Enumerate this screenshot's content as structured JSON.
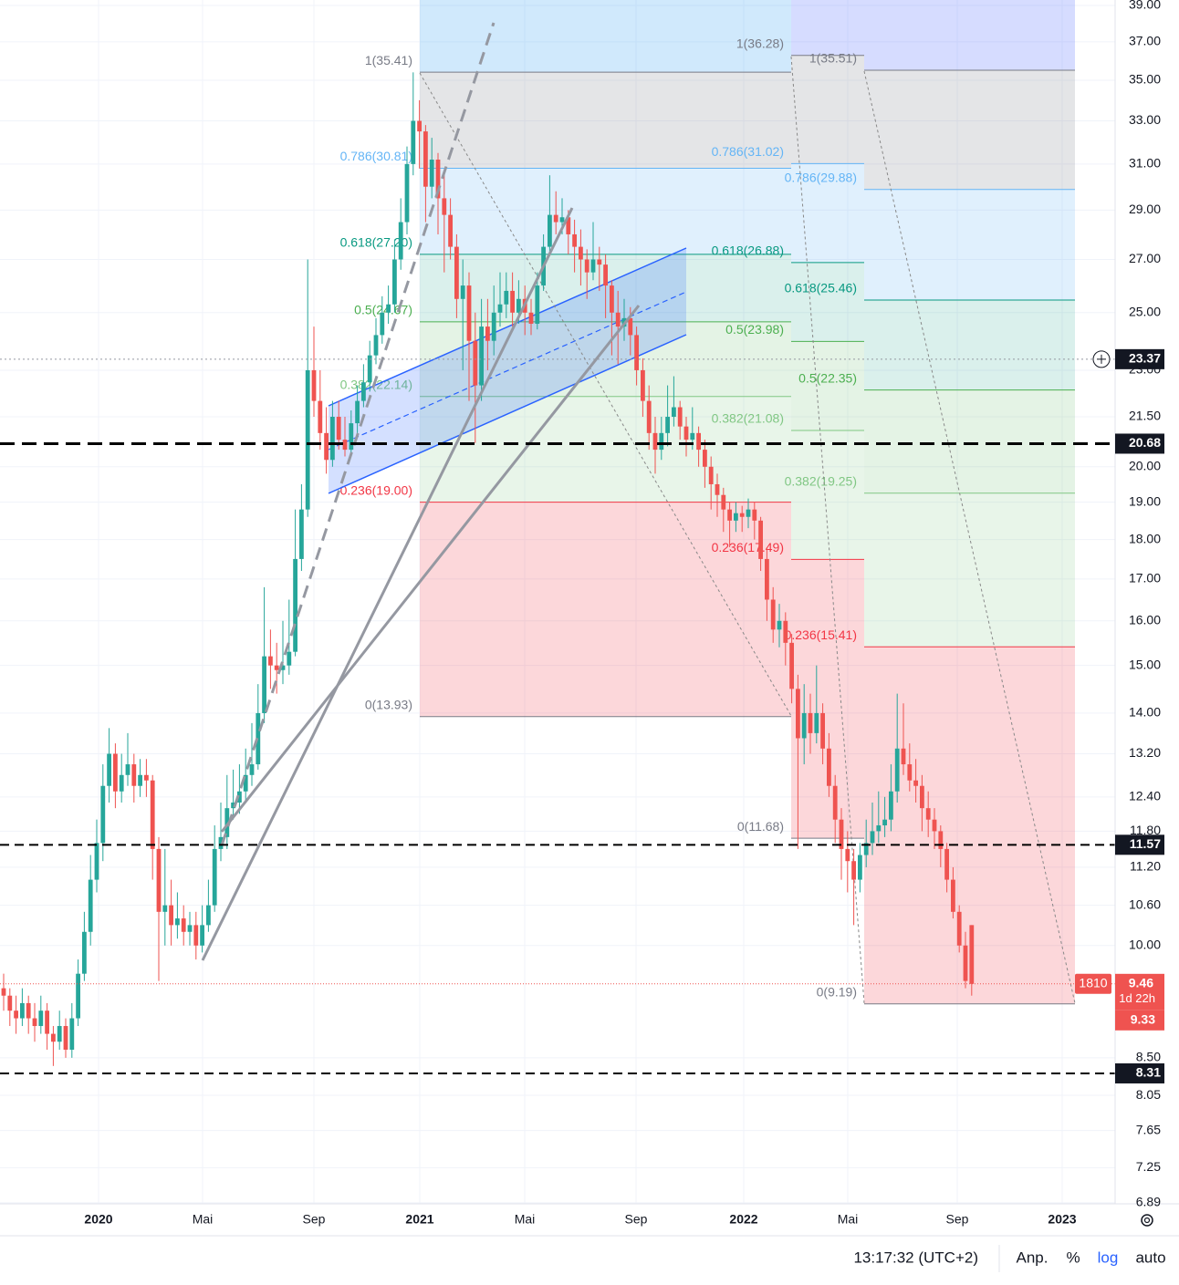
{
  "chart_data": {
    "type": "candlestick",
    "log_scale": true,
    "grid": true,
    "up_color": "#26a69a",
    "down_color": "#ef5350",
    "ylim": [
      6.88,
      39.31
    ],
    "yticks": [
      {
        "value": 39,
        "label": "39.00"
      },
      {
        "value": 37,
        "label": "37.00"
      },
      {
        "value": 35,
        "label": "35.00"
      },
      {
        "value": 33,
        "label": "33.00"
      },
      {
        "value": 31,
        "label": "31.00"
      },
      {
        "value": 29,
        "label": "29.00"
      },
      {
        "value": 27,
        "label": "27.00"
      },
      {
        "value": 25,
        "label": "25.00"
      },
      {
        "value": 23,
        "label": "23.00"
      },
      {
        "value": 21.5,
        "label": "21.50"
      },
      {
        "value": 20,
        "label": "20.00"
      },
      {
        "value": 19,
        "label": "19.00"
      },
      {
        "value": 18,
        "label": "18.00"
      },
      {
        "value": 17,
        "label": "17.00"
      },
      {
        "value": 16,
        "label": "16.00"
      },
      {
        "value": 15,
        "label": "15.00"
      },
      {
        "value": 14,
        "label": "14.00"
      },
      {
        "value": 13.2,
        "label": "13.20"
      },
      {
        "value": 12.4,
        "label": "12.40"
      },
      {
        "value": 11.8,
        "label": "11.80"
      },
      {
        "value": 11.2,
        "label": "11.20"
      },
      {
        "value": 10.6,
        "label": "10.60"
      },
      {
        "value": 10,
        "label": "10.00"
      },
      {
        "value": 8.5,
        "label": "8.50"
      },
      {
        "value": 8.05,
        "label": "8.05"
      },
      {
        "value": 7.65,
        "label": "7.65"
      },
      {
        "value": 7.25,
        "label": "7.25"
      },
      {
        "value": 6.89,
        "label": "6.89"
      }
    ],
    "x_labels": [
      "2020",
      "Mai",
      "Sep",
      "2021",
      "Mai",
      "Sep",
      "2022",
      "Mai",
      "Sep",
      "2023"
    ],
    "candles": [
      [
        9.4,
        9.6,
        9.1,
        9.3
      ],
      [
        9.3,
        9.4,
        8.9,
        9.1
      ],
      [
        9.1,
        9.3,
        8.8,
        9.0
      ],
      [
        9.0,
        9.4,
        8.9,
        9.2
      ],
      [
        9.2,
        9.3,
        8.8,
        9.0
      ],
      [
        9.0,
        9.2,
        8.7,
        8.9
      ],
      [
        8.9,
        9.3,
        8.8,
        9.1
      ],
      [
        9.1,
        9.2,
        8.6,
        8.8
      ],
      [
        8.8,
        8.9,
        8.4,
        8.7
      ],
      [
        8.7,
        9.1,
        8.6,
        8.9
      ],
      [
        8.9,
        9.0,
        8.5,
        8.6
      ],
      [
        8.6,
        9.2,
        8.5,
        9.0
      ],
      [
        9.0,
        9.8,
        8.9,
        9.6
      ],
      [
        9.6,
        10.5,
        9.5,
        10.2
      ],
      [
        10.2,
        11.4,
        10.0,
        11.0
      ],
      [
        11.0,
        12.0,
        10.8,
        11.6
      ],
      [
        11.6,
        13.0,
        11.3,
        12.6
      ],
      [
        12.6,
        13.7,
        12.3,
        13.2
      ],
      [
        13.2,
        13.4,
        12.2,
        12.5
      ],
      [
        12.5,
        13.2,
        12.3,
        12.8
      ],
      [
        12.8,
        13.6,
        12.6,
        13.0
      ],
      [
        13.0,
        13.2,
        12.3,
        12.6
      ],
      [
        12.6,
        13.1,
        12.4,
        12.8
      ],
      [
        12.8,
        13.1,
        12.4,
        12.7
      ],
      [
        12.7,
        12.8,
        11.0,
        11.5
      ],
      [
        11.5,
        11.7,
        9.5,
        10.5
      ],
      [
        10.5,
        11.5,
        10.0,
        10.6
      ],
      [
        10.6,
        11.0,
        10.0,
        10.3
      ],
      [
        10.3,
        10.8,
        10.1,
        10.4
      ],
      [
        10.4,
        10.6,
        10.0,
        10.2
      ],
      [
        10.2,
        10.5,
        10.0,
        10.3
      ],
      [
        10.3,
        10.5,
        9.8,
        10.0
      ],
      [
        10.0,
        10.6,
        9.9,
        10.3
      ],
      [
        10.3,
        11.0,
        10.2,
        10.6
      ],
      [
        10.6,
        11.9,
        10.5,
        11.5
      ],
      [
        11.5,
        12.3,
        11.3,
        11.7
      ],
      [
        11.7,
        12.8,
        11.5,
        12.2
      ],
      [
        12.2,
        12.9,
        12.0,
        12.3
      ],
      [
        12.3,
        13.0,
        12.1,
        12.5
      ],
      [
        12.5,
        13.3,
        12.3,
        12.8
      ],
      [
        12.8,
        13.8,
        12.6,
        13.0
      ],
      [
        13.0,
        14.6,
        12.9,
        14.0
      ],
      [
        14.0,
        16.8,
        13.8,
        15.2
      ],
      [
        15.2,
        15.8,
        14.5,
        15.0
      ],
      [
        15.0,
        15.5,
        14.4,
        14.9
      ],
      [
        14.9,
        16.0,
        14.6,
        15.0
      ],
      [
        15.0,
        16.5,
        14.8,
        15.3
      ],
      [
        15.3,
        18.8,
        15.2,
        17.5
      ],
      [
        17.5,
        19.5,
        17.2,
        18.8
      ],
      [
        18.8,
        27.0,
        18.6,
        23.0
      ],
      [
        23.0,
        24.5,
        21.5,
        22.0
      ],
      [
        22.0,
        23.0,
        20.5,
        21.0
      ],
      [
        21.0,
        21.8,
        19.8,
        20.2
      ],
      [
        20.2,
        22.0,
        20.0,
        21.5
      ],
      [
        21.5,
        22.0,
        20.5,
        20.8
      ],
      [
        20.8,
        21.5,
        20.3,
        20.5
      ],
      [
        20.5,
        21.7,
        20.4,
        21.3
      ],
      [
        21.3,
        22.5,
        21.0,
        22.0
      ],
      [
        22.0,
        23.2,
        21.8,
        22.6
      ],
      [
        22.6,
        24.0,
        22.3,
        23.5
      ],
      [
        23.5,
        24.8,
        23.2,
        24.2
      ],
      [
        24.2,
        25.6,
        23.9,
        25.0
      ],
      [
        25.0,
        26.0,
        24.6,
        25.3
      ],
      [
        25.3,
        27.8,
        25.0,
        27.0
      ],
      [
        27.0,
        29.5,
        26.6,
        28.5
      ],
      [
        28.5,
        31.8,
        28.0,
        31.0
      ],
      [
        31.0,
        35.4,
        30.5,
        33.0
      ],
      [
        33.0,
        34.0,
        30.8,
        32.5
      ],
      [
        32.5,
        32.8,
        28.5,
        30.0
      ],
      [
        30.0,
        32.2,
        29.5,
        31.2
      ],
      [
        31.2,
        31.5,
        28.0,
        29.5
      ],
      [
        29.5,
        30.5,
        26.5,
        28.8
      ],
      [
        28.8,
        29.5,
        27.0,
        27.5
      ],
      [
        27.5,
        28.0,
        24.8,
        25.5
      ],
      [
        25.5,
        27.0,
        23.0,
        26.0
      ],
      [
        26.0,
        26.5,
        22.0,
        24.0
      ],
      [
        24.0,
        25.0,
        20.7,
        22.5
      ],
      [
        22.5,
        25.5,
        22.0,
        24.5
      ],
      [
        24.5,
        25.5,
        23.0,
        24.0
      ],
      [
        24.0,
        26.0,
        23.5,
        25.0
      ],
      [
        25.0,
        26.5,
        24.5,
        25.3
      ],
      [
        25.3,
        26.5,
        24.8,
        25.8
      ],
      [
        25.8,
        26.5,
        24.5,
        25.0
      ],
      [
        25.0,
        26.2,
        24.6,
        25.5
      ],
      [
        25.5,
        26.0,
        24.2,
        25.0
      ],
      [
        25.0,
        25.5,
        24.2,
        24.6
      ],
      [
        24.6,
        26.5,
        24.4,
        26.0
      ],
      [
        26.0,
        28.0,
        25.8,
        27.5
      ],
      [
        27.5,
        30.5,
        27.2,
        28.8
      ],
      [
        28.8,
        29.8,
        28.0,
        28.5
      ],
      [
        28.5,
        29.5,
        28.0,
        28.7
      ],
      [
        28.7,
        29.0,
        27.2,
        28.0
      ],
      [
        28.0,
        28.6,
        26.5,
        27.5
      ],
      [
        27.5,
        28.2,
        26.0,
        27.0
      ],
      [
        27.0,
        27.4,
        25.5,
        26.5
      ],
      [
        26.5,
        28.5,
        26.2,
        27.0
      ],
      [
        27.0,
        27.5,
        25.8,
        26.8
      ],
      [
        26.8,
        27.2,
        24.8,
        26.0
      ],
      [
        26.0,
        26.2,
        23.5,
        25.0
      ],
      [
        25.0,
        25.8,
        23.2,
        24.5
      ],
      [
        24.5,
        25.5,
        24.0,
        24.8
      ],
      [
        24.8,
        25.2,
        23.5,
        24.2
      ],
      [
        24.2,
        24.5,
        22.5,
        23.0
      ],
      [
        23.0,
        23.4,
        21.5,
        22.0
      ],
      [
        22.0,
        22.5,
        20.5,
        21.0
      ],
      [
        21.0,
        21.5,
        19.8,
        20.5
      ],
      [
        20.5,
        21.5,
        20.2,
        21.0
      ],
      [
        21.0,
        22.5,
        20.6,
        21.5
      ],
      [
        21.5,
        22.8,
        21.2,
        21.8
      ],
      [
        21.8,
        22.0,
        20.8,
        21.2
      ],
      [
        21.2,
        21.5,
        20.3,
        20.8
      ],
      [
        20.8,
        21.8,
        20.5,
        21.0
      ],
      [
        21.0,
        21.2,
        20.0,
        20.5
      ],
      [
        20.5,
        20.8,
        19.4,
        20.0
      ],
      [
        20.0,
        20.3,
        18.8,
        19.5
      ],
      [
        19.5,
        19.8,
        18.6,
        19.2
      ],
      [
        19.2,
        19.4,
        18.2,
        18.8
      ],
      [
        18.8,
        19.0,
        17.8,
        18.5
      ],
      [
        18.5,
        19.0,
        18.2,
        18.7
      ],
      [
        18.7,
        18.9,
        18.2,
        18.6
      ],
      [
        18.6,
        19.1,
        18.3,
        18.8
      ],
      [
        18.8,
        19.0,
        18.0,
        18.5
      ],
      [
        18.5,
        18.6,
        17.2,
        17.5
      ],
      [
        17.5,
        17.8,
        16.0,
        16.5
      ],
      [
        16.5,
        16.8,
        15.5,
        15.8
      ],
      [
        15.8,
        16.4,
        15.4,
        16.0
      ],
      [
        16.0,
        16.2,
        15.0,
        15.5
      ],
      [
        15.5,
        15.7,
        14.2,
        14.5
      ],
      [
        14.5,
        14.8,
        11.5,
        13.5
      ],
      [
        13.5,
        14.6,
        13.0,
        14.0
      ],
      [
        14.0,
        14.4,
        13.2,
        13.6
      ],
      [
        13.6,
        15.0,
        13.4,
        14.0
      ],
      [
        14.0,
        14.2,
        13.0,
        13.3
      ],
      [
        13.3,
        13.6,
        12.4,
        12.6
      ],
      [
        12.6,
        12.8,
        11.6,
        12.0
      ],
      [
        12.0,
        12.2,
        11.0,
        11.5
      ],
      [
        11.5,
        11.8,
        10.8,
        11.3
      ],
      [
        11.3,
        11.5,
        10.3,
        11.0
      ],
      [
        11.0,
        11.6,
        10.8,
        11.4
      ],
      [
        11.4,
        12.0,
        11.2,
        11.6
      ],
      [
        11.6,
        12.3,
        11.4,
        11.8
      ],
      [
        11.8,
        12.5,
        11.6,
        11.9
      ],
      [
        11.9,
        12.4,
        11.7,
        12.0
      ],
      [
        12.0,
        13.0,
        11.8,
        12.5
      ],
      [
        12.5,
        14.4,
        12.3,
        13.3
      ],
      [
        13.3,
        14.2,
        12.8,
        13.0
      ],
      [
        13.0,
        13.4,
        12.5,
        12.7
      ],
      [
        12.7,
        13.1,
        12.3,
        12.6
      ],
      [
        12.6,
        12.8,
        11.8,
        12.2
      ],
      [
        12.2,
        12.5,
        11.7,
        12.0
      ],
      [
        12.0,
        12.2,
        11.5,
        11.8
      ],
      [
        11.8,
        11.9,
        11.2,
        11.5
      ],
      [
        11.5,
        11.6,
        10.8,
        11.0
      ],
      [
        11.0,
        11.2,
        10.4,
        10.5
      ],
      [
        10.5,
        10.6,
        9.9,
        10.0
      ],
      [
        10.0,
        10.2,
        9.4,
        9.5
      ],
      [
        10.3,
        10.3,
        9.3,
        9.46
      ]
    ],
    "fibs": [
      {
        "levels": [
          {
            "value": 35.41,
            "label": "1(35.41)"
          },
          {
            "value": 30.81,
            "label": "0.786(30.81)"
          },
          {
            "value": 27.2,
            "label": "0.618(27.20)"
          },
          {
            "value": 24.67,
            "label": "0.5(24.67)"
          },
          {
            "value": 22.14,
            "label": "0.382(22.14)"
          },
          {
            "value": 19.0,
            "label": "0.236(19.00)"
          },
          {
            "value": 13.93,
            "label": "0(13.93)"
          }
        ]
      },
      {
        "levels": [
          {
            "value": 36.28,
            "label": "1(36.28)"
          },
          {
            "value": 31.02,
            "label": "0.786(31.02)"
          },
          {
            "value": 26.88,
            "label": "0.618(26.88)"
          },
          {
            "value": 23.98,
            "label": "0.5(23.98)"
          },
          {
            "value": 21.08,
            "label": "0.382(21.08)"
          },
          {
            "value": 17.49,
            "label": "0.236(17.49)"
          },
          {
            "value": 11.68,
            "label": "0(11.68)"
          }
        ]
      },
      {
        "levels": [
          {
            "value": 35.51,
            "label": "1(35.51)"
          },
          {
            "value": 29.88,
            "label": "0.786(29.88)"
          },
          {
            "value": 25.46,
            "label": "0.618(25.46)"
          },
          {
            "value": 22.35,
            "label": "0.5(22.35)"
          },
          {
            "value": 19.25,
            "label": "0.382(19.25)"
          },
          {
            "value": 15.41,
            "label": "0.236(15.41)"
          },
          {
            "value": 9.19,
            "label": "0(9.19)"
          }
        ]
      }
    ],
    "fib_colors": [
      "#787b86",
      "#64b5f6",
      "#089981",
      "#4caf50",
      "#81c784",
      "#f23645",
      "#787b86"
    ],
    "horizontal_lines": [
      20.68,
      11.57,
      8.31
    ],
    "crosshair_price": 23.37,
    "last_price": 9.46,
    "second_price": 9.33,
    "price_tag": "1810",
    "countdown": "1d 22h"
  },
  "status_bar": {
    "time": "13:17:32 (UTC+2)",
    "adjust": "Anp.",
    "percent": "%",
    "log": "log",
    "auto": "auto"
  }
}
